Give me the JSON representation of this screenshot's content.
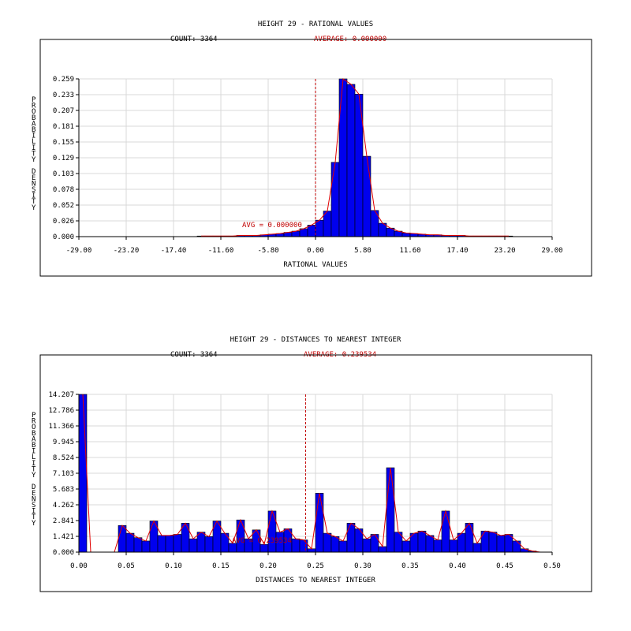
{
  "chart_data": [
    {
      "type": "bar",
      "title": "HEIGHT 29 - RATIONAL VALUES",
      "count_label": "COUNT: 3364",
      "average_label": "AVERAGE: 0.000000",
      "avg_marker_label": "AVG = 0.000000",
      "xlabel": "RATIONAL VALUES",
      "ylabel": "PROBABILITY DENSITY",
      "xlim": [
        -29.0,
        29.0
      ],
      "ylim": [
        0.0,
        0.259
      ],
      "x_ticks": [
        "-29.00",
        "-23.20",
        "-17.40",
        "-11.60",
        "-5.80",
        "0.00",
        "5.80",
        "11.60",
        "17.40",
        "23.20",
        "29.00"
      ],
      "y_ticks": [
        "0.000",
        "0.026",
        "0.052",
        "0.078",
        "0.103",
        "0.129",
        "0.155",
        "0.181",
        "0.207",
        "0.233",
        "0.259"
      ],
      "grid": true,
      "avg_line": 0.0,
      "bin_start": -14.5,
      "bin_width": 0.96667,
      "values": [
        0.001,
        0.001,
        0.001,
        0.001,
        0.001,
        0.002,
        0.002,
        0.002,
        0.003,
        0.004,
        0.005,
        0.007,
        0.009,
        0.013,
        0.019,
        0.027,
        0.042,
        0.122,
        0.259,
        0.25,
        0.234,
        0.132,
        0.043,
        0.022,
        0.014,
        0.009,
        0.006,
        0.005,
        0.004,
        0.003,
        0.003,
        0.002,
        0.002,
        0.002,
        0.001,
        0.001,
        0.001,
        0.001,
        0.001,
        0.001
      ]
    },
    {
      "type": "bar",
      "title": "HEIGHT 29 - DISTANCES TO NEAREST INTEGER",
      "count_label": "COUNT: 3364",
      "average_label": "AVERAGE: 0.239534",
      "avg_marker_label": "AVG = 0.239534",
      "xlabel": "DISTANCES TO NEAREST INTEGER",
      "ylabel": "PROBABILITY DENSITY",
      "xlim": [
        0.0,
        0.5
      ],
      "ylim": [
        0.0,
        14.207
      ],
      "x_ticks": [
        "0.00",
        "0.05",
        "0.10",
        "0.15",
        "0.20",
        "0.25",
        "0.30",
        "0.35",
        "0.40",
        "0.45",
        "0.50"
      ],
      "y_ticks": [
        "0.000",
        "1.421",
        "2.841",
        "4.262",
        "5.683",
        "7.103",
        "8.524",
        "9.945",
        "11.366",
        "12.786",
        "14.207"
      ],
      "grid": true,
      "avg_line": 0.239534,
      "bin_start": 0.0,
      "bin_width": 0.008333,
      "values": [
        14.207,
        0,
        0,
        0,
        0,
        2.4,
        1.7,
        1.3,
        1.0,
        2.8,
        1.5,
        1.5,
        1.6,
        2.6,
        1.2,
        1.8,
        1.4,
        2.8,
        1.7,
        0.8,
        2.9,
        1.2,
        2.0,
        0.7,
        3.7,
        1.8,
        2.1,
        1.2,
        1.1,
        0.3,
        5.3,
        1.7,
        1.4,
        1.0,
        2.6,
        2.1,
        1.2,
        1.6,
        0.5,
        7.6,
        1.8,
        1.0,
        1.7,
        1.9,
        1.5,
        1.1,
        3.7,
        1.1,
        1.7,
        2.6,
        0.8,
        1.9,
        1.8,
        1.5,
        1.6,
        1.0,
        0.3,
        0.1,
        0,
        0
      ]
    }
  ]
}
